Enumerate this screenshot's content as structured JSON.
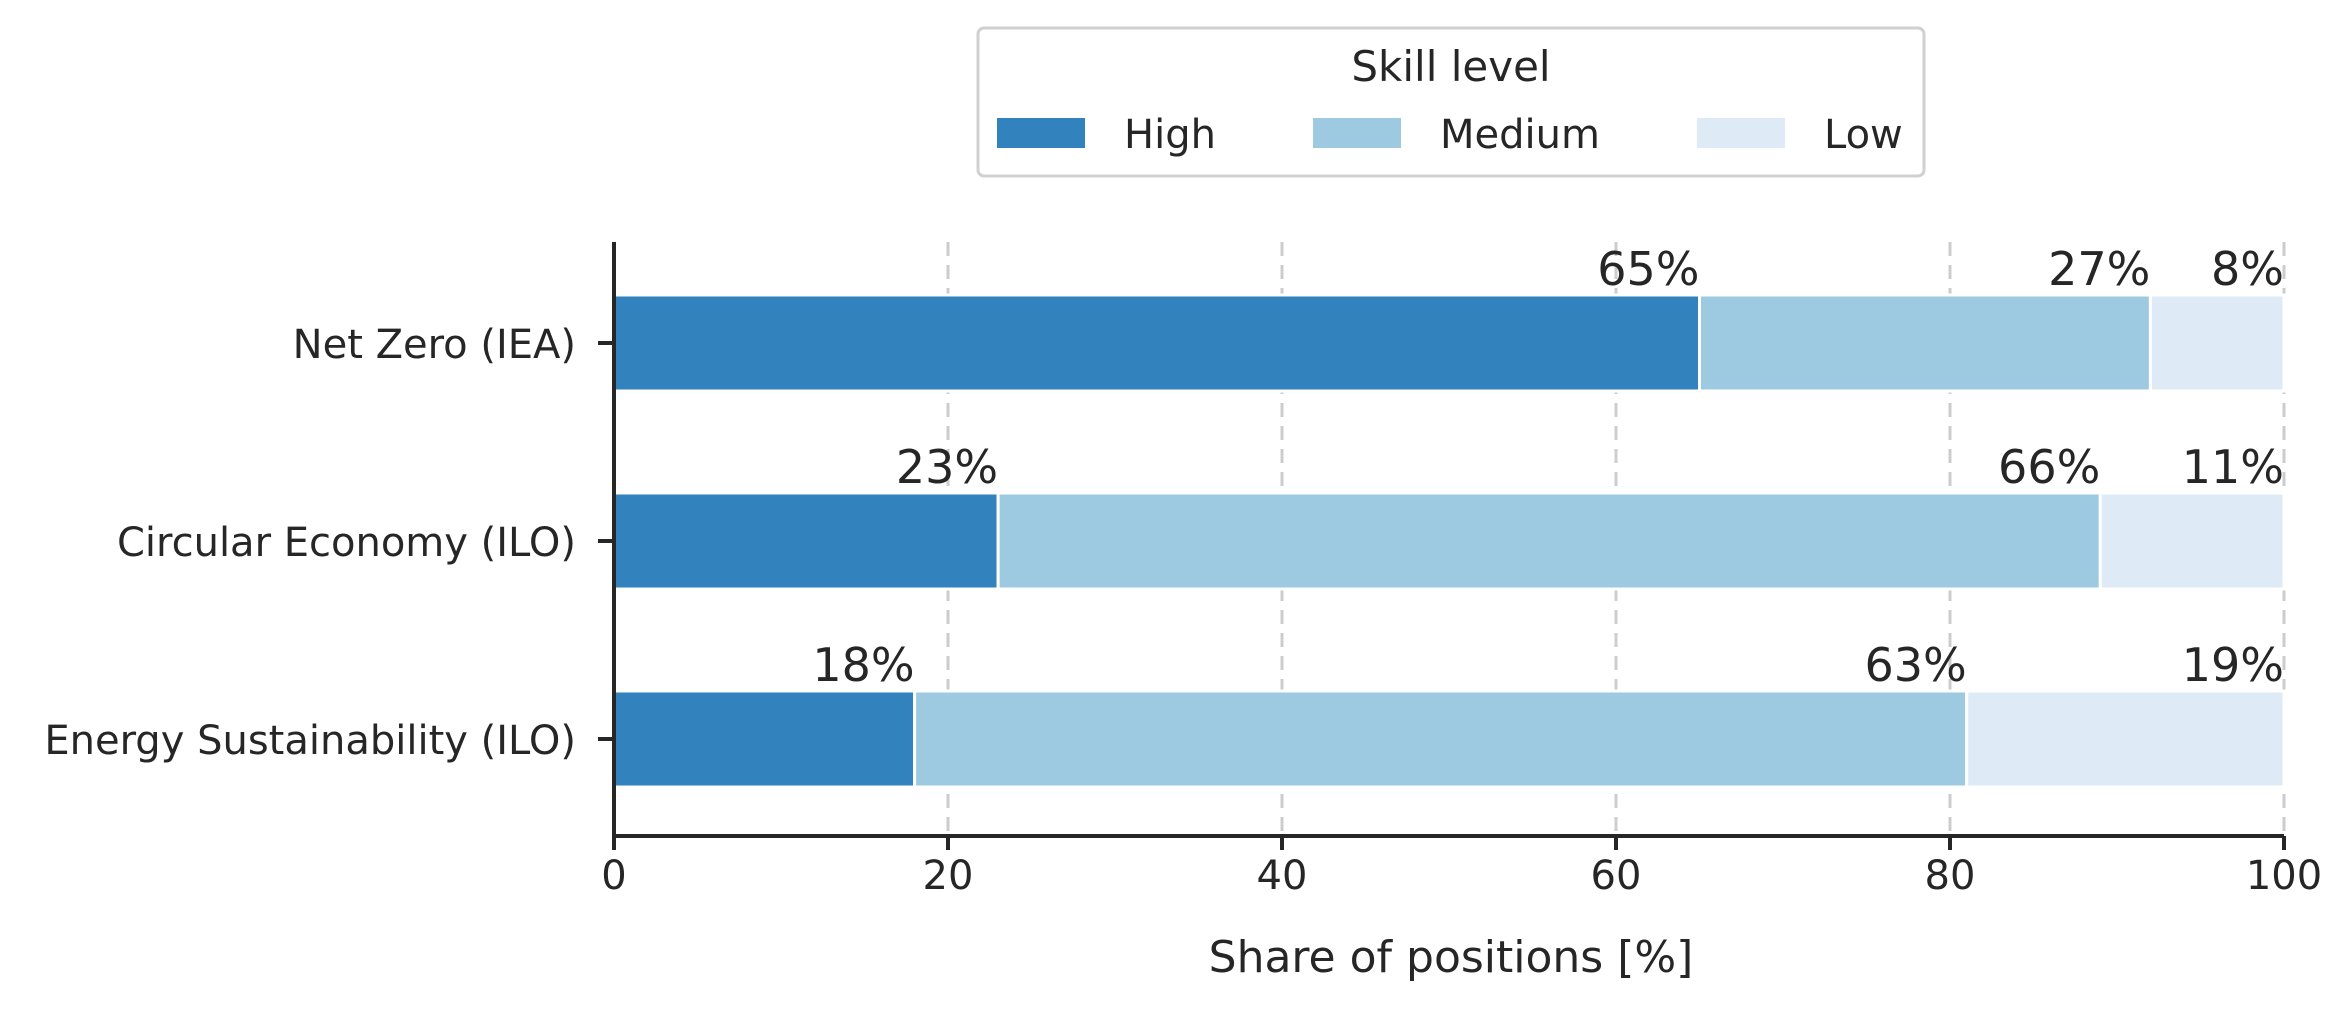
{
  "chart_data": {
    "type": "bar",
    "orientation": "horizontal",
    "stacked": true,
    "categories": [
      "Net Zero (IEA)",
      "Circular Economy (ILO)",
      "Energy Sustainability (ILO)"
    ],
    "series": [
      {
        "name": "High",
        "values": [
          65,
          23,
          18
        ],
        "labels": [
          "65%",
          "23%",
          "18%"
        ],
        "color": "#3182bd"
      },
      {
        "name": "Medium",
        "values": [
          27,
          66,
          63
        ],
        "labels": [
          "27%",
          "66%",
          "63%"
        ],
        "color": "#9ecae1"
      },
      {
        "name": "Low",
        "values": [
          8,
          11,
          19
        ],
        "labels": [
          "8%",
          "11%",
          "19%"
        ],
        "color": "#deebf7"
      }
    ],
    "xlabel": "Share of positions [%]",
    "ylabel": "",
    "xlim": [
      0,
      100
    ],
    "xticks": [
      0,
      20,
      40,
      60,
      80,
      100
    ],
    "xtick_labels": [
      "0",
      "20",
      "40",
      "60",
      "80",
      "100"
    ],
    "grid": "x dashed",
    "legend": {
      "title": "Skill level",
      "placement": "top-center",
      "entries": [
        "High",
        "Medium",
        "Low"
      ]
    }
  }
}
